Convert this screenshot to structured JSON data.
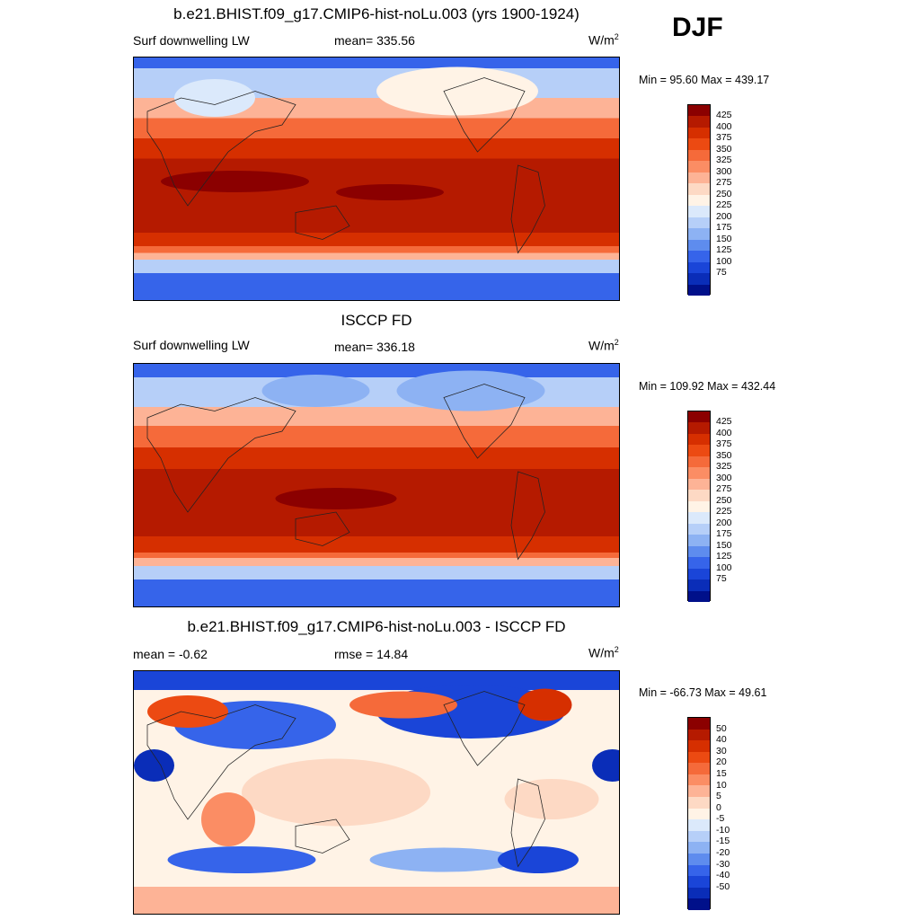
{
  "season": "DJF",
  "panels": [
    {
      "title": "b.e21.BHIST.f09_g17.CMIP6-hist-noLu.003 (yrs 1900-1924)",
      "left_label": "Surf downwelling LW",
      "center_label": "mean= 335.56",
      "units": "W/m",
      "units_sup": "2",
      "minmax": "Min =  95.60 Max = 439.17",
      "colorbar_levels": [
        "425",
        "400",
        "375",
        "350",
        "325",
        "300",
        "275",
        "250",
        "225",
        "200",
        "175",
        "150",
        "125",
        "100",
        "75"
      ],
      "colorbar_colors": [
        "#8b0000",
        "#b51a00",
        "#d62f00",
        "#ec4a12",
        "#f56a3a",
        "#fb8d64",
        "#fdb396",
        "#fdd9c4",
        "#fff3e6",
        "#dbe9fb",
        "#b6cff8",
        "#8db2f3",
        "#5e8cee",
        "#3664ea",
        "#1a45d8",
        "#0a2db8",
        "#00108a"
      ]
    },
    {
      "title": "ISCCP FD",
      "left_label": "Surf downwelling LW",
      "center_label": "mean= 336.18",
      "units": "W/m",
      "units_sup": "2",
      "minmax": "Min = 109.92 Max = 432.44",
      "colorbar_levels": [
        "425",
        "400",
        "375",
        "350",
        "325",
        "300",
        "275",
        "250",
        "225",
        "200",
        "175",
        "150",
        "125",
        "100",
        "75"
      ],
      "colorbar_colors": [
        "#8b0000",
        "#b51a00",
        "#d62f00",
        "#ec4a12",
        "#f56a3a",
        "#fb8d64",
        "#fdb396",
        "#fdd9c4",
        "#fff3e6",
        "#dbe9fb",
        "#b6cff8",
        "#8db2f3",
        "#5e8cee",
        "#3664ea",
        "#1a45d8",
        "#0a2db8",
        "#00108a"
      ]
    },
    {
      "title": "b.e21.BHIST.f09_g17.CMIP6-hist-noLu.003 - ISCCP FD",
      "left_label": "mean =  -0.62",
      "center_label": "rmse =  14.84",
      "units": "W/m",
      "units_sup": "2",
      "minmax": "Min = -66.73 Max =  49.61",
      "colorbar_levels": [
        "50",
        "40",
        "30",
        "20",
        "15",
        "10",
        "5",
        "0",
        "-5",
        "-10",
        "-15",
        "-20",
        "-30",
        "-40",
        "-50"
      ],
      "colorbar_colors": [
        "#8b0000",
        "#b51a00",
        "#d62f00",
        "#ec4a12",
        "#f56a3a",
        "#fb8d64",
        "#fdb396",
        "#fdd9c4",
        "#fff3e6",
        "#dbe9fb",
        "#b6cff8",
        "#8db2f3",
        "#5e8cee",
        "#3664ea",
        "#1a45d8",
        "#0a2db8",
        "#00108a"
      ]
    }
  ]
}
